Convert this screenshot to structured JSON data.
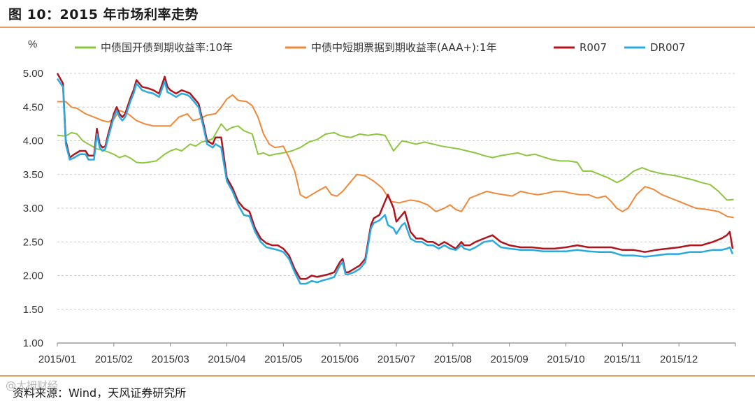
{
  "figure": {
    "title": "图 10：2015 年市场利率走势",
    "source": "资料来源：Wind，天风证券研究所",
    "watermark": "@大拇财经"
  },
  "colors": {
    "accent_rule": "#e8a060",
    "grid": "#c8c8c8",
    "axis": "#888888"
  },
  "chart_data": {
    "type": "line",
    "title": "2015 年市场利率走势",
    "ylabel": "%",
    "xlabel": "",
    "ylim": [
      1.0,
      5.0
    ],
    "yticks": [
      "1.00",
      "1.50",
      "2.00",
      "2.50",
      "3.00",
      "3.50",
      "4.00",
      "4.50",
      "5.00"
    ],
    "ytick_values": [
      1.0,
      1.5,
      2.0,
      2.5,
      3.0,
      3.5,
      4.0,
      4.5,
      5.0
    ],
    "xlim": [
      0,
      12
    ],
    "xticks": [
      "2015/01",
      "2015/02",
      "2015/03",
      "2015/04",
      "2015/05",
      "2015/06",
      "2015/07",
      "2015/08",
      "2015/09",
      "2015/10",
      "2015/11",
      "2015/12"
    ],
    "xtick_values": [
      0,
      1,
      2,
      3,
      4,
      5,
      6,
      7,
      8,
      9,
      10,
      11
    ],
    "grid": "horizontal-dashed",
    "legend_position": "top",
    "series": [
      {
        "name": "中债国开债到期收益率:10年",
        "color": "#8cc63f",
        "x": [
          0,
          0.15,
          0.25,
          0.35,
          0.45,
          0.55,
          0.7,
          0.85,
          1.0,
          1.1,
          1.2,
          1.3,
          1.4,
          1.5,
          1.6,
          1.75,
          1.9,
          2.0,
          2.1,
          2.2,
          2.35,
          2.45,
          2.55,
          2.65,
          2.75,
          2.9,
          3.0,
          3.05,
          3.1,
          3.2,
          3.3,
          3.45,
          3.55,
          3.65,
          3.75,
          3.85,
          4.0,
          4.15,
          4.3,
          4.45,
          4.6,
          4.75,
          4.9,
          5.0,
          5.1,
          5.2,
          5.35,
          5.5,
          5.65,
          5.8,
          5.95,
          6.1,
          6.2,
          6.35,
          6.5,
          6.65,
          6.8,
          6.95,
          7.1,
          7.25,
          7.4,
          7.55,
          7.7,
          7.85,
          8.0,
          8.15,
          8.3,
          8.45,
          8.6,
          8.75,
          8.9,
          9.05,
          9.2,
          9.3,
          9.45,
          9.6,
          9.75,
          9.9,
          10.0,
          10.1,
          10.2,
          10.35,
          10.5,
          10.65,
          10.8,
          10.95,
          11.1,
          11.25,
          11.4,
          11.55,
          11.7,
          11.85,
          11.97
        ],
        "values": [
          4.08,
          4.07,
          4.12,
          4.1,
          4.0,
          3.95,
          3.88,
          3.85,
          3.8,
          3.75,
          3.78,
          3.74,
          3.68,
          3.67,
          3.68,
          3.7,
          3.8,
          3.85,
          3.88,
          3.85,
          3.95,
          3.92,
          3.98,
          4.0,
          4.03,
          4.25,
          4.15,
          4.18,
          4.2,
          4.22,
          4.15,
          4.1,
          3.8,
          3.82,
          3.78,
          3.8,
          3.82,
          3.85,
          3.9,
          3.98,
          4.02,
          4.1,
          4.12,
          4.08,
          4.06,
          4.05,
          4.1,
          4.08,
          4.1,
          4.08,
          3.85,
          4.0,
          3.98,
          3.95,
          3.98,
          3.95,
          3.92,
          3.9,
          3.88,
          3.85,
          3.82,
          3.78,
          3.75,
          3.78,
          3.8,
          3.82,
          3.78,
          3.8,
          3.76,
          3.72,
          3.7,
          3.7,
          3.68,
          3.55,
          3.55,
          3.5,
          3.45,
          3.38,
          3.42,
          3.48,
          3.55,
          3.6,
          3.55,
          3.52,
          3.5,
          3.48,
          3.45,
          3.42,
          3.38,
          3.35,
          3.25,
          3.12,
          3.13
        ]
      },
      {
        "name": "中债中短期票据到期收益率(AAA+):1年",
        "color": "#f0883a",
        "x": [
          0,
          0.15,
          0.25,
          0.35,
          0.5,
          0.65,
          0.8,
          0.9,
          1.0,
          1.1,
          1.25,
          1.4,
          1.55,
          1.7,
          1.85,
          2.0,
          2.15,
          2.3,
          2.4,
          2.5,
          2.65,
          2.8,
          2.9,
          3.0,
          3.1,
          3.2,
          3.35,
          3.45,
          3.55,
          3.65,
          3.75,
          3.85,
          4.0,
          4.1,
          4.2,
          4.3,
          4.4,
          4.5,
          4.6,
          4.75,
          4.85,
          4.95,
          5.05,
          5.15,
          5.3,
          5.45,
          5.6,
          5.75,
          5.9,
          6.05,
          6.15,
          6.25,
          6.4,
          6.55,
          6.7,
          6.85,
          6.95,
          7.05,
          7.15,
          7.3,
          7.45,
          7.6,
          7.75,
          7.9,
          8.05,
          8.2,
          8.35,
          8.5,
          8.65,
          8.8,
          8.95,
          9.1,
          9.25,
          9.4,
          9.55,
          9.7,
          9.8,
          9.9,
          10.0,
          10.1,
          10.25,
          10.4,
          10.55,
          10.7,
          10.85,
          11.0,
          11.15,
          11.3,
          11.5,
          11.7,
          11.85,
          11.97
        ],
        "values": [
          4.58,
          4.58,
          4.5,
          4.48,
          4.4,
          4.35,
          4.3,
          4.28,
          4.32,
          4.45,
          4.4,
          4.3,
          4.25,
          4.22,
          4.22,
          4.22,
          4.35,
          4.4,
          4.3,
          4.32,
          4.38,
          4.4,
          4.5,
          4.62,
          4.68,
          4.6,
          4.58,
          4.52,
          4.35,
          4.1,
          3.95,
          3.9,
          3.92,
          3.75,
          3.55,
          3.2,
          3.15,
          3.2,
          3.25,
          3.32,
          3.2,
          3.18,
          3.25,
          3.35,
          3.5,
          3.48,
          3.4,
          3.3,
          3.1,
          3.08,
          3.1,
          3.12,
          3.1,
          3.05,
          2.95,
          3.0,
          3.05,
          2.98,
          2.95,
          3.15,
          3.2,
          3.25,
          3.22,
          3.2,
          3.18,
          3.25,
          3.22,
          3.2,
          3.22,
          3.25,
          3.25,
          3.22,
          3.2,
          3.2,
          3.15,
          3.18,
          3.1,
          3.0,
          2.95,
          3.0,
          3.2,
          3.32,
          3.28,
          3.2,
          3.15,
          3.1,
          3.05,
          3.0,
          2.98,
          2.95,
          2.88,
          2.86
        ]
      },
      {
        "name": "R007",
        "color": "#b0141c",
        "x": [
          0,
          0.1,
          0.15,
          0.22,
          0.3,
          0.4,
          0.5,
          0.55,
          0.65,
          0.7,
          0.75,
          0.8,
          0.85,
          0.9,
          1.0,
          1.05,
          1.1,
          1.15,
          1.2,
          1.3,
          1.35,
          1.4,
          1.5,
          1.6,
          1.7,
          1.8,
          1.9,
          1.95,
          2.0,
          2.1,
          2.2,
          2.3,
          2.35,
          2.45,
          2.5,
          2.6,
          2.65,
          2.75,
          2.8,
          2.9,
          3.0,
          3.1,
          3.2,
          3.3,
          3.4,
          3.5,
          3.6,
          3.7,
          3.8,
          3.9,
          4.0,
          4.1,
          4.2,
          4.3,
          4.4,
          4.5,
          4.6,
          4.7,
          4.8,
          4.9,
          5.0,
          5.05,
          5.1,
          5.15,
          5.25,
          5.35,
          5.45,
          5.55,
          5.6,
          5.7,
          5.8,
          5.85,
          5.95,
          6.0,
          6.1,
          6.15,
          6.25,
          6.35,
          6.45,
          6.55,
          6.65,
          6.75,
          6.85,
          6.95,
          7.05,
          7.15,
          7.2,
          7.3,
          7.4,
          7.55,
          7.7,
          7.85,
          8.0,
          8.2,
          8.4,
          8.6,
          8.8,
          9.0,
          9.2,
          9.4,
          9.6,
          9.8,
          10.0,
          10.2,
          10.4,
          10.6,
          10.8,
          11.0,
          11.2,
          11.4,
          11.6,
          11.75,
          11.85,
          11.9,
          11.95
        ],
        "values": [
          5.0,
          4.85,
          4.0,
          3.75,
          3.8,
          3.85,
          3.85,
          3.78,
          3.78,
          4.18,
          3.95,
          3.9,
          3.92,
          4.1,
          4.4,
          4.5,
          4.4,
          4.35,
          4.4,
          4.65,
          4.75,
          4.9,
          4.8,
          4.78,
          4.75,
          4.7,
          4.95,
          4.8,
          4.75,
          4.7,
          4.75,
          4.72,
          4.7,
          4.6,
          4.55,
          4.2,
          4.0,
          3.95,
          4.05,
          4.05,
          3.45,
          3.3,
          3.1,
          3.0,
          2.95,
          2.7,
          2.55,
          2.48,
          2.45,
          2.45,
          2.4,
          2.3,
          2.1,
          1.95,
          1.95,
          2.0,
          1.98,
          2.0,
          2.02,
          2.05,
          2.2,
          2.25,
          2.05,
          2.05,
          2.1,
          2.15,
          2.25,
          2.75,
          2.85,
          2.9,
          3.1,
          3.2,
          3.0,
          2.8,
          2.9,
          2.95,
          2.65,
          2.55,
          2.55,
          2.5,
          2.5,
          2.45,
          2.5,
          2.45,
          2.4,
          2.5,
          2.45,
          2.45,
          2.5,
          2.55,
          2.6,
          2.5,
          2.45,
          2.42,
          2.42,
          2.4,
          2.4,
          2.42,
          2.45,
          2.42,
          2.42,
          2.42,
          2.38,
          2.38,
          2.35,
          2.38,
          2.4,
          2.42,
          2.45,
          2.45,
          2.5,
          2.55,
          2.6,
          2.65,
          2.4
        ],
        "width": 2.5
      },
      {
        "name": "DR007",
        "color": "#29abe2",
        "x": [
          0,
          0.1,
          0.15,
          0.22,
          0.3,
          0.4,
          0.5,
          0.55,
          0.65,
          0.7,
          0.75,
          0.8,
          0.85,
          0.9,
          1.0,
          1.05,
          1.1,
          1.15,
          1.2,
          1.3,
          1.35,
          1.4,
          1.5,
          1.6,
          1.7,
          1.8,
          1.9,
          1.95,
          2.0,
          2.1,
          2.2,
          2.3,
          2.35,
          2.45,
          2.5,
          2.6,
          2.65,
          2.75,
          2.8,
          2.9,
          3.0,
          3.1,
          3.2,
          3.3,
          3.4,
          3.5,
          3.6,
          3.7,
          3.8,
          3.9,
          4.0,
          4.1,
          4.2,
          4.3,
          4.4,
          4.5,
          4.6,
          4.7,
          4.8,
          4.9,
          5.0,
          5.05,
          5.1,
          5.15,
          5.25,
          5.35,
          5.45,
          5.55,
          5.6,
          5.7,
          5.8,
          5.85,
          5.95,
          6.0,
          6.1,
          6.15,
          6.25,
          6.35,
          6.45,
          6.55,
          6.65,
          6.75,
          6.85,
          6.95,
          7.05,
          7.15,
          7.2,
          7.3,
          7.4,
          7.55,
          7.7,
          7.85,
          8.0,
          8.2,
          8.4,
          8.6,
          8.8,
          9.0,
          9.2,
          9.4,
          9.6,
          9.8,
          10.0,
          10.2,
          10.4,
          10.6,
          10.8,
          11.0,
          11.2,
          11.4,
          11.6,
          11.75,
          11.85,
          11.9,
          11.95
        ],
        "values": [
          4.92,
          4.8,
          3.95,
          3.72,
          3.75,
          3.8,
          3.8,
          3.72,
          3.72,
          4.1,
          3.9,
          3.85,
          3.88,
          4.05,
          4.35,
          4.45,
          4.35,
          4.3,
          4.35,
          4.6,
          4.7,
          4.85,
          4.75,
          4.72,
          4.7,
          4.65,
          4.88,
          4.72,
          4.7,
          4.65,
          4.7,
          4.68,
          4.65,
          4.55,
          4.5,
          4.15,
          3.95,
          3.9,
          3.95,
          3.9,
          3.4,
          3.25,
          3.05,
          2.9,
          2.88,
          2.65,
          2.5,
          2.42,
          2.4,
          2.38,
          2.35,
          2.25,
          2.05,
          1.88,
          1.88,
          1.92,
          1.9,
          1.93,
          1.95,
          1.98,
          2.15,
          2.2,
          2.02,
          2.02,
          2.05,
          2.1,
          2.2,
          2.7,
          2.78,
          2.82,
          2.9,
          2.75,
          2.7,
          2.62,
          2.75,
          2.78,
          2.55,
          2.5,
          2.5,
          2.45,
          2.45,
          2.4,
          2.45,
          2.4,
          2.38,
          2.45,
          2.4,
          2.38,
          2.42,
          2.5,
          2.52,
          2.42,
          2.4,
          2.38,
          2.38,
          2.36,
          2.36,
          2.36,
          2.38,
          2.36,
          2.35,
          2.35,
          2.3,
          2.3,
          2.28,
          2.3,
          2.32,
          2.32,
          2.35,
          2.35,
          2.38,
          2.38,
          2.4,
          2.42,
          2.32
        ],
        "width": 2.5
      }
    ]
  }
}
